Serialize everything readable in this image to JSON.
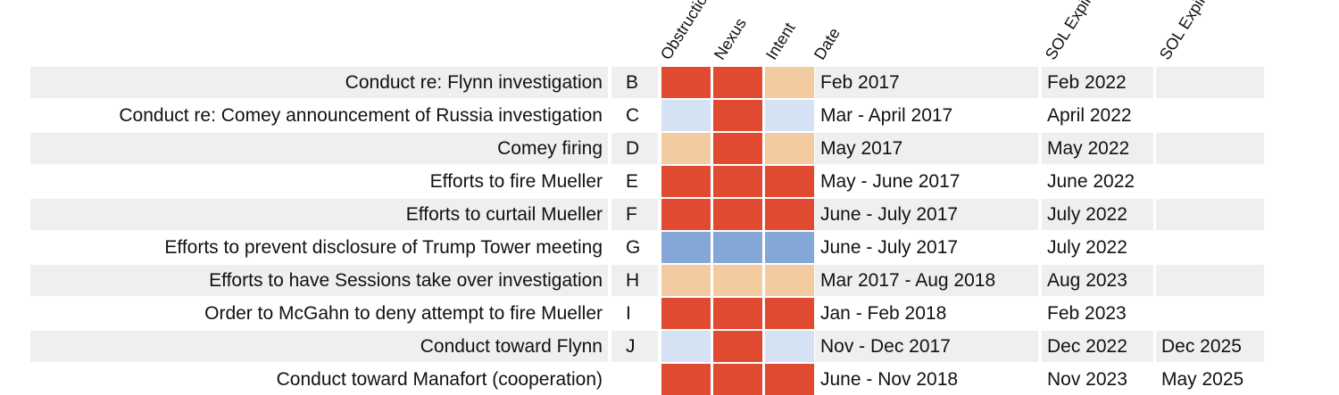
{
  "chart_data": {
    "type": "table",
    "title": "",
    "columns": [
      "",
      "",
      "Obstruction",
      "Nexus",
      "Intent",
      "Date",
      "",
      "SOL Expiration",
      "SOL Expiration"
    ],
    "headers": [
      {
        "name": "header-obstruction",
        "text": "Obstruction"
      },
      {
        "name": "header-nexus",
        "text": "Nexus"
      },
      {
        "name": "header-intent",
        "text": "Intent"
      },
      {
        "name": "header-date",
        "text": "Date"
      },
      {
        "name": "header-sol-1",
        "text": "SOL Expiration"
      },
      {
        "name": "header-sol-2",
        "text": "SOL Expiration"
      }
    ],
    "legend_colors": {
      "strong": "#e04a30",
      "moderate": "#f2cca0",
      "weak": "#d4e2f3",
      "unclear": "#84a7d8"
    },
    "rows": [
      {
        "label": "Conduct re: Flynn investigation",
        "letter": "B",
        "obstruction": "strong",
        "nexus": "strong",
        "intent": "moderate",
        "date": "Feb 2017",
        "sol1": "Feb 2022",
        "sol2": ""
      },
      {
        "label": "Conduct re: Comey announcement of Russia investigation",
        "letter": "C",
        "obstruction": "weak",
        "nexus": "strong",
        "intent": "weak",
        "date": "Mar - April 2017",
        "sol1": "April 2022",
        "sol2": ""
      },
      {
        "label": "Comey firing",
        "letter": "D",
        "obstruction": "moderate",
        "nexus": "strong",
        "intent": "moderate",
        "date": "May 2017",
        "sol1": "May 2022",
        "sol2": ""
      },
      {
        "label": "Efforts to fire Mueller",
        "letter": "E",
        "obstruction": "strong",
        "nexus": "strong",
        "intent": "strong",
        "date": "May - June 2017",
        "sol1": "June 2022",
        "sol2": ""
      },
      {
        "label": "Efforts to curtail Mueller",
        "letter": "F",
        "obstruction": "strong",
        "nexus": "strong",
        "intent": "strong",
        "date": "June - July 2017",
        "sol1": "July 2022",
        "sol2": ""
      },
      {
        "label": "Efforts to prevent disclosure of Trump Tower meeting",
        "letter": "G",
        "obstruction": "unclear",
        "nexus": "unclear",
        "intent": "unclear",
        "date": "June - July 2017",
        "sol1": "July 2022",
        "sol2": ""
      },
      {
        "label": "Efforts to have Sessions take over investigation",
        "letter": "H",
        "obstruction": "moderate",
        "nexus": "moderate",
        "intent": "moderate",
        "date": "Mar 2017 - Aug 2018",
        "sol1": "Aug 2023",
        "sol2": ""
      },
      {
        "label": "Order to McGahn to deny attempt to fire Mueller",
        "letter": "I",
        "obstruction": "strong",
        "nexus": "strong",
        "intent": "strong",
        "date": "Jan - Feb 2018",
        "sol1": "Feb 2023",
        "sol2": ""
      },
      {
        "label": "Conduct toward Flynn",
        "letter": "J",
        "obstruction": "weak",
        "nexus": "strong",
        "intent": "weak",
        "date": "Nov - Dec 2017",
        "sol1": "Dec 2022",
        "sol2": "Dec 2025"
      },
      {
        "label": "Conduct toward Manafort (cooperation)",
        "letter": "",
        "obstruction": "strong",
        "nexus": "strong",
        "intent": "strong",
        "date": "June - Nov 2018",
        "sol1": "Nov 2023",
        "sol2": "May 2025"
      }
    ]
  }
}
